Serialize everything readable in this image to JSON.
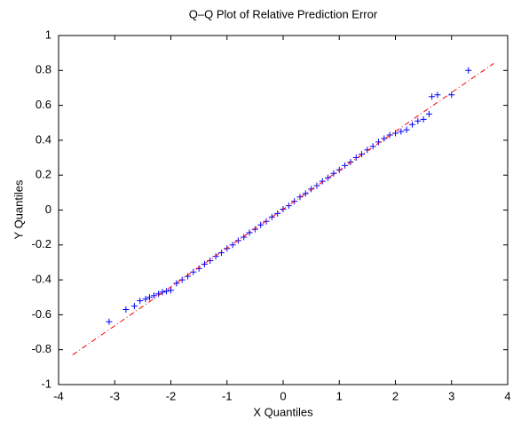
{
  "chart_data": {
    "type": "scatter",
    "title": "Q–Q Plot of Relative Prediction Error",
    "x_label": "X Quantiles",
    "y_label": "Y Quantiles",
    "xlim": [
      -4,
      4
    ],
    "ylim": [
      -1,
      1
    ],
    "xticks": [
      -4,
      -3,
      -2,
      -1,
      0,
      1,
      2,
      3,
      4
    ],
    "yticks": [
      -1,
      -0.8,
      -0.6,
      -0.4,
      -0.2,
      0,
      0.2,
      0.4,
      0.6,
      0.8,
      1
    ],
    "grid": false,
    "series": [
      {
        "color": "#0000ff",
        "marker": "+",
        "x": [
          -3.1,
          -2.8,
          -2.65,
          -2.55,
          -2.45,
          -2.38,
          -2.3,
          -2.22,
          -2.15,
          -2.08,
          -2.0,
          -1.9,
          -1.8,
          -1.7,
          -1.6,
          -1.5,
          -1.4,
          -1.3,
          -1.2,
          -1.1,
          -1.0,
          -0.9,
          -0.8,
          -0.7,
          -0.6,
          -0.5,
          -0.4,
          -0.3,
          -0.2,
          -0.1,
          0,
          0.1,
          0.2,
          0.3,
          0.4,
          0.5,
          0.6,
          0.7,
          0.8,
          0.9,
          1.0,
          1.1,
          1.2,
          1.3,
          1.4,
          1.5,
          1.6,
          1.7,
          1.8,
          1.9,
          2.0,
          2.1,
          2.2,
          2.3,
          2.4,
          2.5,
          2.6,
          2.65,
          2.75,
          3.0,
          3.3
        ],
        "values": [
          -0.64,
          -0.57,
          -0.55,
          -0.52,
          -0.51,
          -0.5,
          -0.49,
          -0.48,
          -0.47,
          -0.465,
          -0.46,
          -0.42,
          -0.4,
          -0.38,
          -0.355,
          -0.335,
          -0.31,
          -0.29,
          -0.265,
          -0.245,
          -0.22,
          -0.2,
          -0.175,
          -0.155,
          -0.13,
          -0.11,
          -0.085,
          -0.065,
          -0.04,
          -0.02,
          0.005,
          0.025,
          0.05,
          0.075,
          0.095,
          0.12,
          0.14,
          0.165,
          0.185,
          0.21,
          0.23,
          0.255,
          0.275,
          0.3,
          0.32,
          0.345,
          0.365,
          0.39,
          0.41,
          0.43,
          0.44,
          0.45,
          0.46,
          0.49,
          0.51,
          0.52,
          0.55,
          0.65,
          0.66,
          0.66,
          0.8
        ]
      },
      {
        "color": "#ff0000",
        "line": "dashdot",
        "x": [
          -3.75,
          3.75
        ],
        "values": [
          -0.83,
          0.84
        ]
      }
    ]
  }
}
